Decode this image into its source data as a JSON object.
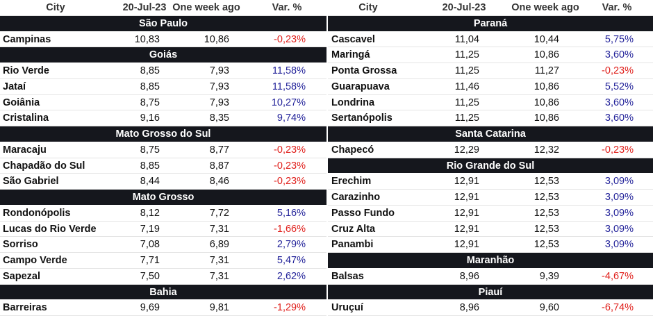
{
  "tables": [
    {
      "header": [
        "City",
        "20-Jul-23",
        "One week ago",
        "Var. %"
      ],
      "groups": [
        {
          "state": "São Paulo",
          "rows": [
            [
              "Campinas",
              "10,83",
              "10,86",
              "-0,23%"
            ]
          ]
        },
        {
          "state": "Goiás",
          "rows": [
            [
              "Rio Verde",
              "8,85",
              "7,93",
              "11,58%"
            ],
            [
              "Jataí",
              "8,85",
              "7,93",
              "11,58%"
            ],
            [
              "Goiânia",
              "8,75",
              "7,93",
              "10,27%"
            ],
            [
              "Cristalina",
              "9,16",
              "8,35",
              "9,74%"
            ]
          ]
        },
        {
          "state": "Mato Grosso do Sul",
          "rows": [
            [
              "Maracaju",
              "8,75",
              "8,77",
              "-0,23%"
            ],
            [
              "Chapadão do Sul",
              "8,85",
              "8,87",
              "-0,23%"
            ],
            [
              "São Gabriel",
              "8,44",
              "8,46",
              "-0,23%"
            ]
          ]
        },
        {
          "state": "Mato Grosso",
          "rows": [
            [
              "Rondonópolis",
              "8,12",
              "7,72",
              "5,16%"
            ],
            [
              "Lucas do Rio Verde",
              "7,19",
              "7,31",
              "-1,66%"
            ],
            [
              "Sorriso",
              "7,08",
              "6,89",
              "2,79%"
            ],
            [
              "Campo Verde",
              "7,71",
              "7,31",
              "5,47%"
            ],
            [
              "Sapezal",
              "7,50",
              "7,31",
              "2,62%"
            ]
          ]
        },
        {
          "state": "Bahia",
          "rows": [
            [
              "Barreiras",
              "9,69",
              "9,81",
              "-1,29%"
            ]
          ]
        }
      ]
    },
    {
      "header": [
        "City",
        "20-Jul-23",
        "One week ago",
        "Var. %"
      ],
      "groups": [
        {
          "state": "Paraná",
          "rows": [
            [
              "Cascavel",
              "11,04",
              "10,44",
              "5,75%"
            ],
            [
              "Maringá",
              "11,25",
              "10,86",
              "3,60%"
            ],
            [
              "Ponta Grossa",
              "11,25",
              "11,27",
              "-0,23%"
            ],
            [
              "Guarapuava",
              "11,46",
              "10,86",
              "5,52%"
            ],
            [
              "Londrina",
              "11,25",
              "10,86",
              "3,60%"
            ],
            [
              "Sertanópolis",
              "11,25",
              "10,86",
              "3,60%"
            ]
          ]
        },
        {
          "state": "Santa Catarina",
          "rows": [
            [
              "Chapecó",
              "12,29",
              "12,32",
              "-0,23%"
            ]
          ]
        },
        {
          "state": "Rio Grande do Sul",
          "rows": [
            [
              "Erechim",
              "12,91",
              "12,53",
              "3,09%"
            ],
            [
              "Carazinho",
              "12,91",
              "12,53",
              "3,09%"
            ],
            [
              "Passo Fundo",
              "12,91",
              "12,53",
              "3,09%"
            ],
            [
              "Cruz Alta",
              "12,91",
              "12,53",
              "3,09%"
            ],
            [
              "Panambi",
              "12,91",
              "12,53",
              "3,09%"
            ]
          ]
        },
        {
          "state": "Maranhão",
          "rows": [
            [
              "Balsas",
              "8,96",
              "9,39",
              "-4,67%"
            ]
          ]
        },
        {
          "state": "Piauí",
          "rows": [
            [
              "Uruçuí",
              "8,96",
              "9,60",
              "-6,74%"
            ]
          ]
        }
      ]
    }
  ]
}
